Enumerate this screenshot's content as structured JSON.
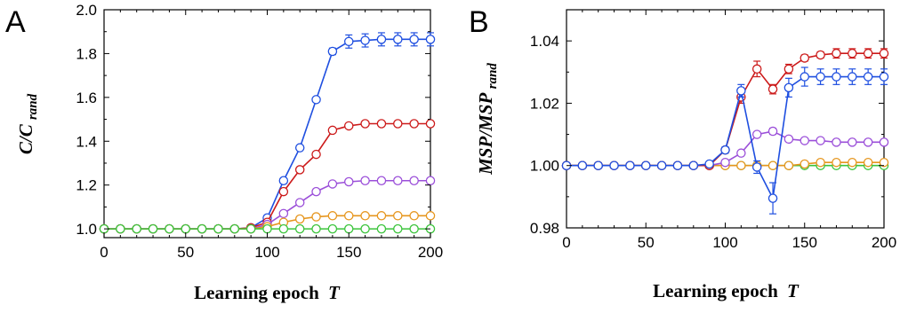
{
  "chart_data": [
    {
      "type": "line",
      "panel": "A",
      "xlabel": "Learning epoch",
      "xlabel_var": "T",
      "ylabel_main": "C/C",
      "ylabel_sub": "rand",
      "xlim": [
        0,
        200
      ],
      "ylim": [
        0.96,
        2.0
      ],
      "xticks": [
        0,
        50,
        100,
        150,
        200
      ],
      "yticks": [
        1.0,
        1.2,
        1.4,
        1.6,
        1.8,
        2.0
      ],
      "ytick_labels": [
        "1.0",
        "1.2",
        "1.4",
        "1.6",
        "1.8",
        "2.0"
      ],
      "grid": false,
      "legend": "none",
      "x": [
        0,
        10,
        20,
        30,
        40,
        50,
        60,
        70,
        80,
        90,
        100,
        110,
        120,
        130,
        140,
        150,
        160,
        170,
        180,
        190,
        200
      ],
      "series": [
        {
          "color": "#1f4fe0",
          "values": [
            1.0,
            1.0,
            1.0,
            1.0,
            1.0,
            1.0,
            1.0,
            1.0,
            1.0,
            1.005,
            1.05,
            1.22,
            1.37,
            1.59,
            1.81,
            1.855,
            1.86,
            1.865,
            1.865,
            1.865,
            1.865
          ],
          "errors": [
            0,
            0,
            0,
            0,
            0,
            0,
            0,
            0,
            0,
            0,
            0.005,
            0.01,
            0.01,
            0.01,
            0.015,
            0.03,
            0.03,
            0.03,
            0.03,
            0.03,
            0.03
          ]
        },
        {
          "color": "#cc1a1a",
          "values": [
            1.0,
            1.0,
            1.0,
            1.0,
            1.0,
            1.0,
            1.0,
            1.0,
            1.0,
            1.005,
            1.03,
            1.17,
            1.27,
            1.34,
            1.45,
            1.47,
            1.48,
            1.48,
            1.48,
            1.48,
            1.48
          ],
          "errors": [
            0,
            0,
            0,
            0,
            0,
            0,
            0,
            0,
            0,
            0,
            0,
            0,
            0,
            0,
            0,
            0,
            0,
            0,
            0,
            0,
            0
          ]
        },
        {
          "color": "#9b4fd9",
          "values": [
            1.0,
            1.0,
            1.0,
            1.0,
            1.0,
            1.0,
            1.0,
            1.0,
            1.0,
            1.0,
            1.02,
            1.07,
            1.12,
            1.17,
            1.205,
            1.215,
            1.22,
            1.22,
            1.22,
            1.22,
            1.22
          ],
          "errors": [
            0,
            0,
            0,
            0,
            0,
            0,
            0,
            0,
            0,
            0,
            0,
            0,
            0,
            0,
            0,
            0,
            0,
            0,
            0,
            0,
            0
          ]
        },
        {
          "color": "#e6961e",
          "values": [
            1.0,
            1.0,
            1.0,
            1.0,
            1.0,
            1.0,
            1.0,
            1.0,
            1.0,
            1.0,
            1.01,
            1.03,
            1.045,
            1.055,
            1.06,
            1.06,
            1.06,
            1.06,
            1.06,
            1.06,
            1.06
          ],
          "errors": [
            0,
            0,
            0,
            0,
            0,
            0,
            0,
            0,
            0,
            0,
            0,
            0,
            0,
            0,
            0,
            0,
            0,
            0,
            0,
            0,
            0
          ]
        },
        {
          "color": "#3cc43c",
          "values": [
            1.0,
            1.0,
            1.0,
            1.0,
            1.0,
            1.0,
            1.0,
            1.0,
            1.0,
            1.0,
            1.0,
            1.0,
            1.0,
            1.0,
            1.0,
            1.0,
            1.0,
            1.0,
            1.0,
            1.0,
            1.0
          ],
          "errors": [
            0,
            0,
            0,
            0,
            0,
            0,
            0,
            0,
            0,
            0,
            0,
            0,
            0,
            0,
            0,
            0,
            0,
            0,
            0,
            0,
            0
          ]
        }
      ]
    },
    {
      "type": "line",
      "panel": "B",
      "xlabel": "Learning epoch",
      "xlabel_var": "T",
      "ylabel_main": "MSP/MSP",
      "ylabel_sub": "rand",
      "xlim": [
        0,
        200
      ],
      "ylim": [
        0.98,
        1.05
      ],
      "xticks": [
        0,
        50,
        100,
        150,
        200
      ],
      "yticks": [
        0.98,
        1.0,
        1.02,
        1.04
      ],
      "ytick_labels": [
        "0.98",
        "1.00",
        "1.02",
        "1.04"
      ],
      "grid": false,
      "legend": "none",
      "x": [
        0,
        10,
        20,
        30,
        40,
        50,
        60,
        70,
        80,
        90,
        100,
        110,
        120,
        130,
        140,
        150,
        160,
        170,
        180,
        190,
        200
      ],
      "series": [
        {
          "color": "#3cc43c",
          "values": [
            1.0,
            1.0,
            1.0,
            1.0,
            1.0,
            1.0,
            1.0,
            1.0,
            1.0,
            1.0,
            1.0,
            1.0,
            1.0,
            1.0,
            1.0,
            1.0,
            1.0,
            1.0,
            1.0,
            1.0,
            1.0
          ],
          "errors": [
            0,
            0,
            0,
            0,
            0,
            0,
            0,
            0,
            0,
            0,
            0,
            0,
            0,
            0,
            0,
            0,
            0,
            0,
            0,
            0,
            0
          ]
        },
        {
          "color": "#e6961e",
          "values": [
            1.0,
            1.0,
            1.0,
            1.0,
            1.0,
            1.0,
            1.0,
            1.0,
            1.0,
            1.0,
            1.0,
            1.0,
            1.0,
            1.0,
            1.0,
            1.0005,
            1.001,
            1.001,
            1.001,
            1.001,
            1.001
          ],
          "errors": [
            0,
            0,
            0,
            0,
            0,
            0,
            0,
            0,
            0,
            0,
            0,
            0,
            0,
            0,
            0,
            0,
            0,
            0,
            0,
            0,
            0
          ]
        },
        {
          "color": "#9b4fd9",
          "values": [
            1.0,
            1.0,
            1.0,
            1.0,
            1.0,
            1.0,
            1.0,
            1.0,
            1.0,
            1.0,
            1.001,
            1.004,
            1.01,
            1.011,
            1.0085,
            1.008,
            1.008,
            1.0075,
            1.0075,
            1.0075,
            1.0075
          ],
          "errors": [
            0,
            0,
            0,
            0,
            0,
            0,
            0,
            0,
            0,
            0,
            0,
            0,
            0,
            0.001,
            0,
            0,
            0,
            0,
            0,
            0,
            0
          ]
        },
        {
          "color": "#cc1a1a",
          "values": [
            1.0,
            1.0,
            1.0,
            1.0,
            1.0,
            1.0,
            1.0,
            1.0,
            1.0,
            1.0,
            1.005,
            1.022,
            1.031,
            1.0245,
            1.031,
            1.0345,
            1.0355,
            1.036,
            1.036,
            1.036,
            1.036
          ],
          "errors": [
            0,
            0,
            0,
            0,
            0,
            0,
            0,
            0,
            0,
            0,
            0.001,
            0.002,
            0.0025,
            0.0015,
            0.0015,
            0.001,
            0.001,
            0.0015,
            0.0015,
            0.0015,
            0.0015
          ]
        },
        {
          "color": "#1f4fe0",
          "values": [
            1.0,
            1.0,
            1.0,
            1.0,
            1.0,
            1.0,
            1.0,
            1.0,
            1.0,
            1.0005,
            1.005,
            1.024,
            0.9995,
            0.9895,
            1.025,
            1.0285,
            1.0285,
            1.0285,
            1.0285,
            1.0285,
            1.0285
          ],
          "errors": [
            0,
            0,
            0,
            0,
            0,
            0,
            0,
            0,
            0,
            0,
            0.001,
            0.002,
            0.002,
            0.005,
            0.003,
            0.003,
            0.0025,
            0.0025,
            0.0025,
            0.0025,
            0.0025
          ]
        }
      ]
    }
  ]
}
